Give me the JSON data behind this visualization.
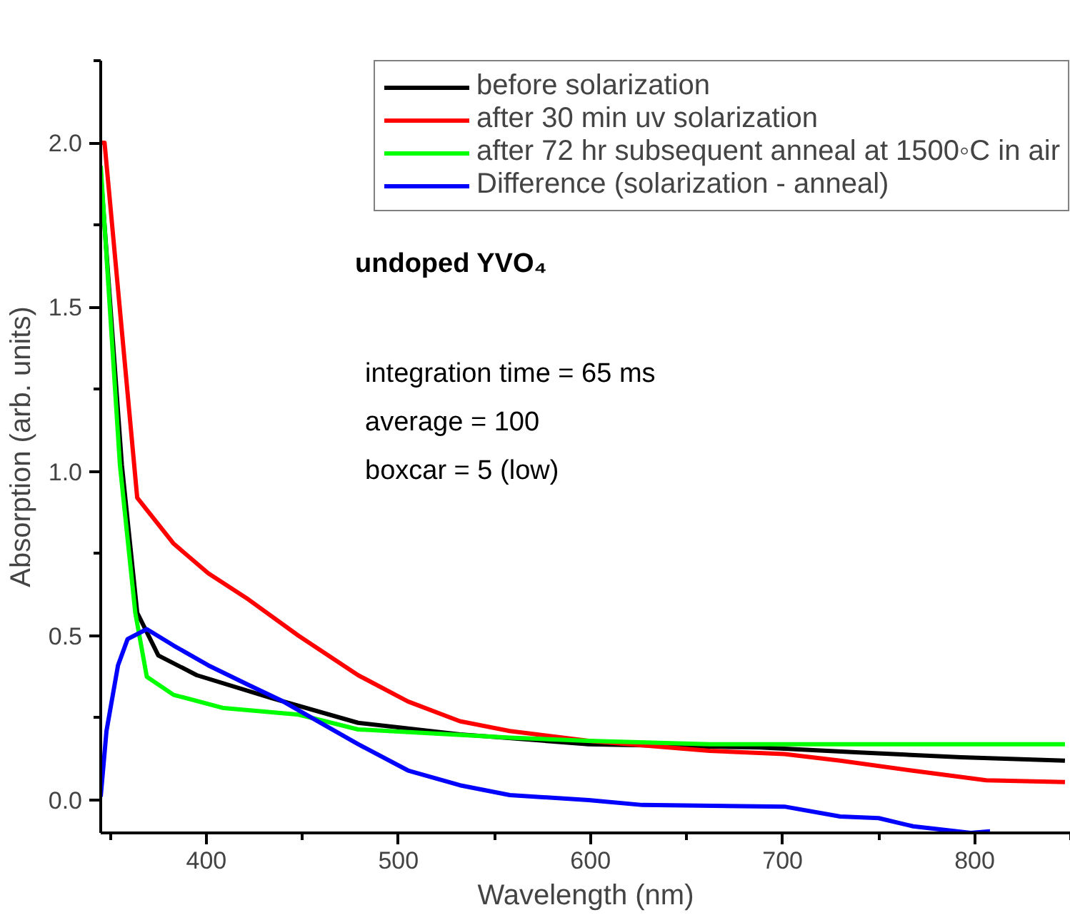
{
  "chart_data": {
    "type": "line",
    "xlabel": "Wavelength (nm)",
    "ylabel": "Absorption (arb. units)",
    "xlim": [
      345,
      850
    ],
    "ylim": [
      -0.1,
      2.25
    ],
    "xticks": [
      400,
      500,
      600,
      700,
      800
    ],
    "yticks": [
      {
        "value": 0,
        "label": "0.0"
      },
      {
        "value": 0.5,
        "label": "0.5"
      },
      {
        "value": 1,
        "label": "1.0"
      },
      {
        "value": 1.5,
        "label": "1.5"
      },
      {
        "value": 2,
        "label": "2.0"
      }
    ],
    "grid": false,
    "legend": "top right",
    "annotations": [
      "undoped YVO₄",
      "integration time = 65 ms",
      "average = 100",
      "boxcar = 5 (low)"
    ],
    "series": [
      {
        "name": "before solarization",
        "color": "#000000",
        "x": [
          345,
          356,
          364,
          375,
          395,
          434,
          479,
          532,
          599,
          688,
          740,
          793,
          847
        ],
        "values": [
          1.91,
          1.02,
          0.57,
          0.44,
          0.38,
          0.31,
          0.235,
          0.2,
          0.17,
          0.16,
          0.145,
          0.13,
          0.12
        ]
      },
      {
        "name": "after 30 min uv solarization",
        "color": "#ff0000",
        "x": [
          345,
          347,
          364,
          383,
          401,
          422,
          448,
          479,
          505,
          532,
          558,
          599,
          662,
          701,
          730,
          767,
          806,
          847
        ],
        "values": [
          2.0,
          2.0,
          0.92,
          0.78,
          0.69,
          0.61,
          0.5,
          0.38,
          0.3,
          0.24,
          0.21,
          0.18,
          0.15,
          0.14,
          0.12,
          0.09,
          0.06,
          0.055
        ]
      },
      {
        "name": "after 72 hr subsequent anneal at 1500◦C in air",
        "color": "#00ff00",
        "x": [
          345,
          355,
          363,
          369,
          383,
          409,
          448,
          479,
          558,
          599,
          662,
          740,
          847
        ],
        "values": [
          1.93,
          1.02,
          0.57,
          0.375,
          0.32,
          0.28,
          0.26,
          0.215,
          0.19,
          0.18,
          0.17,
          0.17,
          0.17
        ]
      },
      {
        "name": "Difference (solarization - anneal)",
        "color": "#0000ff",
        "x": [
          345,
          348,
          354,
          359,
          369,
          383,
          401,
          422,
          440,
          461,
          479,
          505,
          532,
          558,
          599,
          627,
          701,
          730,
          750,
          768,
          798,
          808
        ],
        "values": [
          0.01,
          0.21,
          0.41,
          0.49,
          0.52,
          0.47,
          0.41,
          0.35,
          0.3,
          0.23,
          0.17,
          0.09,
          0.045,
          0.015,
          0.0,
          -0.015,
          -0.02,
          -0.05,
          -0.055,
          -0.08,
          -0.1,
          -0.095
        ]
      }
    ]
  }
}
